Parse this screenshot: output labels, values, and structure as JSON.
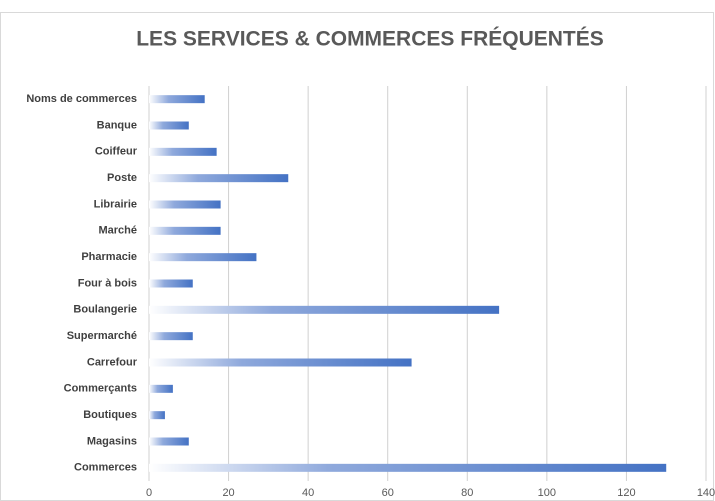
{
  "chart_data": {
    "type": "bar",
    "orientation": "horizontal",
    "title": "LES SERVICES & COMMERCES FRÉQUENTÉS",
    "categories": [
      "Noms de commerces",
      "Banque",
      "Coiffeur",
      "Poste",
      "Librairie",
      "Marché",
      "Pharmacie",
      "Four à bois",
      "Boulangerie",
      "Supermarché",
      "Carrefour",
      "Commerçants",
      "Boutiques",
      "Magasins",
      "Commerces"
    ],
    "values": [
      14,
      10,
      17,
      35,
      18,
      18,
      27,
      11,
      88,
      11,
      66,
      6,
      4,
      10,
      130
    ],
    "color": "#4472c4",
    "xlim": [
      0,
      140
    ],
    "xticks": [
      0,
      20,
      40,
      60,
      80,
      100,
      120,
      140
    ],
    "grid": true
  }
}
